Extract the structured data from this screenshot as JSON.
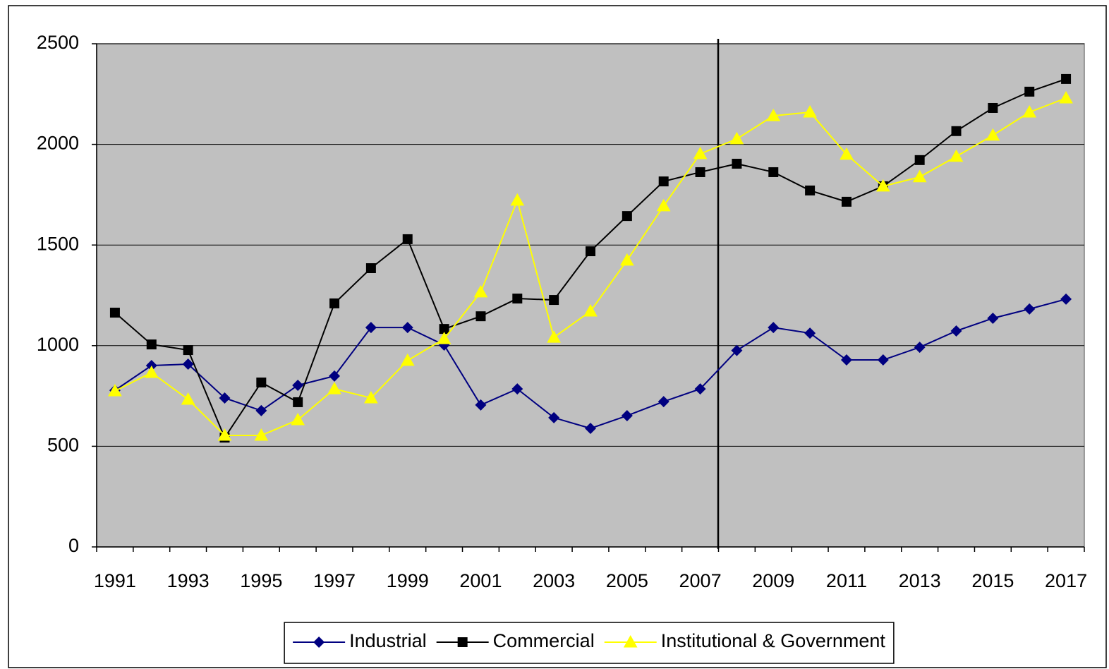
{
  "chart_data": {
    "type": "line",
    "categories": [
      "1991",
      null,
      "1993",
      null,
      "1995",
      null,
      "1997",
      null,
      "1999",
      null,
      "2001",
      null,
      "2003",
      null,
      "2005",
      null,
      "2007",
      null,
      "2009",
      null,
      "2011",
      null,
      "2013",
      null,
      "2015",
      null,
      "2017"
    ],
    "ylim": [
      0,
      2500
    ],
    "yticks": [
      0,
      500,
      1000,
      1500,
      2000,
      2500
    ],
    "grid": true,
    "legend": "bottom",
    "series": [
      {
        "name": "Industrial",
        "color": "#000080",
        "marker": "diamond",
        "values": [
          778,
          901,
          908,
          740,
          677,
          803,
          849,
          1090,
          1090,
          1003,
          705,
          785,
          642,
          589,
          652,
          722,
          785,
          976,
          1090,
          1062,
          929,
          929,
          992,
          1073,
          1136,
          1182,
          1231
        ]
      },
      {
        "name": "Commercial",
        "color": "#000000",
        "marker": "square",
        "values": [
          1164,
          1006,
          978,
          543,
          817,
          719,
          1210,
          1385,
          1529,
          1083,
          1146,
          1234,
          1227,
          1469,
          1644,
          1816,
          1862,
          1904,
          1862,
          1771,
          1715,
          1792,
          1922,
          2066,
          2181,
          2262,
          2325
        ]
      },
      {
        "name": "Institutional & Government",
        "color": "#ffff00",
        "marker": "triangle",
        "values": [
          775,
          866,
          733,
          554,
          554,
          631,
          785,
          740,
          926,
          1034,
          1266,
          1722,
          1041,
          1171,
          1424,
          1694,
          1953,
          2027,
          2142,
          2160,
          1950,
          1792,
          1838,
          1940,
          2045,
          2160,
          2230
        ]
      }
    ]
  }
}
